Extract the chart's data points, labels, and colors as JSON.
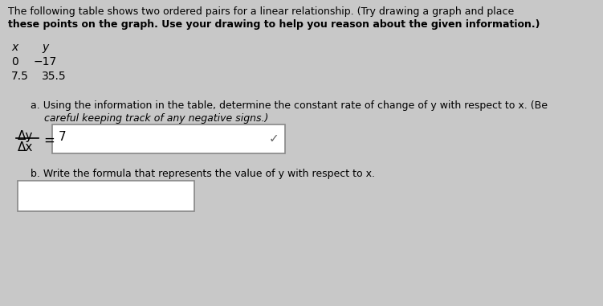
{
  "bg_color": "#c8c8c8",
  "title_line1": "The following table shows two ordered pairs for a linear relationship. (Try drawing a graph and place",
  "title_line2": "these points on the graph. Use your drawing to help you reason about the given information.)",
  "table_header_x": "x",
  "table_header_y": "y",
  "table_row1_x": "0",
  "table_row1_y": "−17",
  "table_row2_x": "7.5",
  "table_row2_y": "35.5",
  "part_a_line1": "a. Using the information in the table, determine the constant rate of change of y with respect to x. (Be",
  "part_a_line2": "careful keeping track of any negative signs.)",
  "fraction_top": "Δy",
  "fraction_bottom": "Δx",
  "equals": "=",
  "answer_a": "7",
  "checkmark": "✓",
  "part_b_label": "b. Write the formula that represents the value of y with respect to x."
}
